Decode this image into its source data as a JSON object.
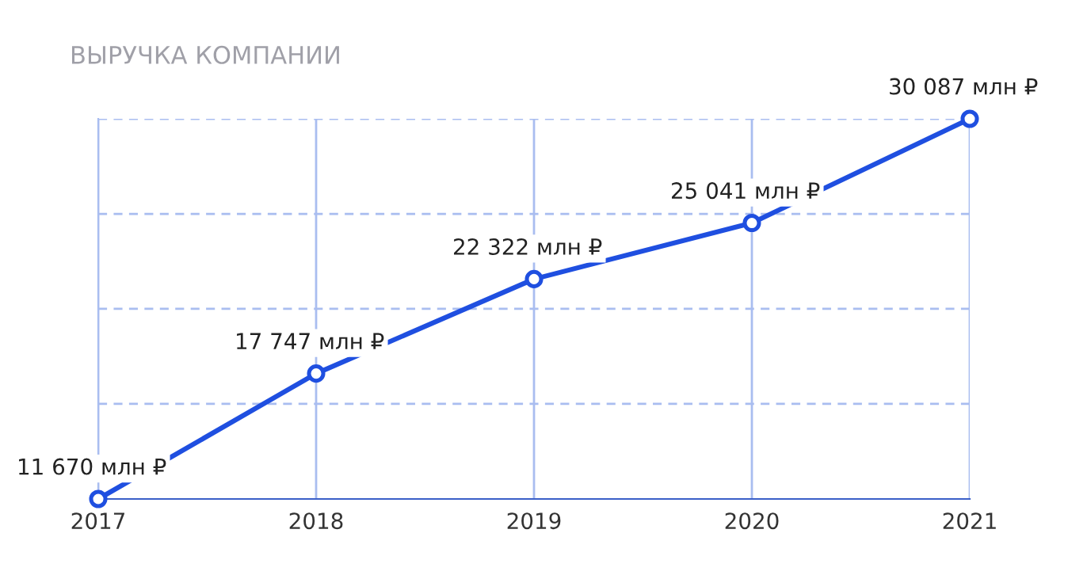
{
  "chart_data": {
    "type": "line",
    "title": "ВЫРУЧКА КОМПАНИИ",
    "categories": [
      "2017",
      "2018",
      "2019",
      "2020",
      "2021"
    ],
    "series": [
      {
        "color": "#1f4fe0",
        "values": [
          11670,
          17747,
          22322,
          25041,
          30087
        ],
        "value_labels": [
          "11 670 млн ₽",
          "17 747 млн ₽",
          "22 322 млн ₽",
          "25 041 млн ₽",
          "30 087 млн ₽"
        ]
      }
    ],
    "ylim": [
      11670,
      30087
    ],
    "yticks": [
      {
        "value": 16275,
        "label": null
      },
      {
        "value": 20880,
        "label": null
      },
      {
        "value": 25480,
        "label": null
      },
      {
        "value": 30087,
        "label": null
      }
    ],
    "grid": true,
    "marker": "circle",
    "line_style": "solid",
    "tick_labels": "x"
  }
}
